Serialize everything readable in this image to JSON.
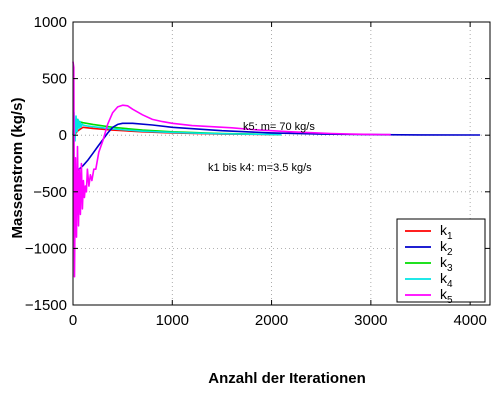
{
  "chart_data": {
    "type": "line",
    "title": "",
    "xlabel": "Anzahl der Iterationen",
    "ylabel": "Massenstrom (kg/s)",
    "xlim": [
      0,
      4200
    ],
    "ylim": [
      -1500,
      1000
    ],
    "xticks": [
      0,
      1000,
      2000,
      3000,
      4000
    ],
    "yticks": [
      1000,
      500,
      0,
      -500,
      -1000,
      -1500
    ],
    "xtick_labels": [
      "0",
      "1000",
      "2000",
      "3000",
      "4000"
    ],
    "ytick_labels": [
      "1000",
      "500",
      "0",
      "−500",
      "−1000",
      "−1500"
    ],
    "grid": true,
    "grid_style": "dotted",
    "legend_position": "bottom-right",
    "annotations": [
      {
        "text": "k5: m= 70 kg/s",
        "x": 1650,
        "y": 150
      },
      {
        "text": "k1 bis k4: m=3.5 kg/s",
        "x": 1300,
        "y": -160
      }
    ],
    "series": [
      {
        "name": "k",
        "subscript": "1",
        "color": "#ff0000",
        "x": [
          0,
          20,
          50,
          100,
          200,
          400,
          700,
          1000,
          1500,
          2100
        ],
        "y": [
          0,
          10,
          40,
          70,
          60,
          45,
          30,
          20,
          10,
          5
        ]
      },
      {
        "name": "k",
        "subscript": "2",
        "color": "#0000cc",
        "x": [
          0,
          30,
          60,
          100,
          150,
          200,
          250,
          300,
          350,
          400,
          450,
          500,
          600,
          800,
          1000,
          1500,
          2000,
          2500,
          3000,
          3500,
          4100
        ],
        "y": [
          -320,
          -330,
          -300,
          -270,
          -220,
          -160,
          -100,
          -40,
          20,
          70,
          95,
          105,
          105,
          90,
          70,
          40,
          20,
          10,
          5,
          3,
          2
        ]
      },
      {
        "name": "k",
        "subscript": "3",
        "color": "#00dd00",
        "x": [
          0,
          15,
          40,
          60,
          100,
          200,
          400,
          700,
          1000,
          1500,
          2100
        ],
        "y": [
          0,
          60,
          140,
          120,
          110,
          95,
          70,
          45,
          30,
          15,
          5
        ]
      },
      {
        "name": "k",
        "subscript": "4",
        "color": "#00e5e5",
        "x": [
          0,
          10,
          20,
          30,
          40,
          50,
          60,
          70,
          80,
          90,
          100,
          150,
          200,
          400,
          700,
          1000,
          1500,
          2100
        ],
        "y": [
          0,
          200,
          -50,
          170,
          30,
          140,
          60,
          120,
          70,
          100,
          90,
          80,
          75,
          55,
          35,
          25,
          12,
          5
        ]
      },
      {
        "name": "k",
        "subscript": "5",
        "color": "#ff00ff",
        "x": [
          0,
          8,
          15,
          25,
          35,
          45,
          55,
          65,
          75,
          85,
          95,
          105,
          115,
          125,
          135,
          145,
          160,
          175,
          190,
          210,
          230,
          260,
          300,
          350,
          400,
          450,
          500,
          550,
          600,
          700,
          800,
          900,
          1000,
          1100,
          1200,
          1400,
          1600,
          1800,
          2000,
          2200,
          2400,
          2600,
          2800,
          3000,
          3200
        ],
        "y": [
          650,
          600,
          -1250,
          -200,
          -900,
          -100,
          -800,
          -300,
          -700,
          -250,
          -650,
          -400,
          -550,
          -450,
          -500,
          -300,
          -450,
          -350,
          -400,
          -300,
          -300,
          -150,
          -50,
          100,
          200,
          250,
          265,
          260,
          230,
          180,
          140,
          120,
          105,
          95,
          85,
          75,
          65,
          50,
          40,
          30,
          22,
          15,
          10,
          7,
          5
        ]
      }
    ]
  }
}
